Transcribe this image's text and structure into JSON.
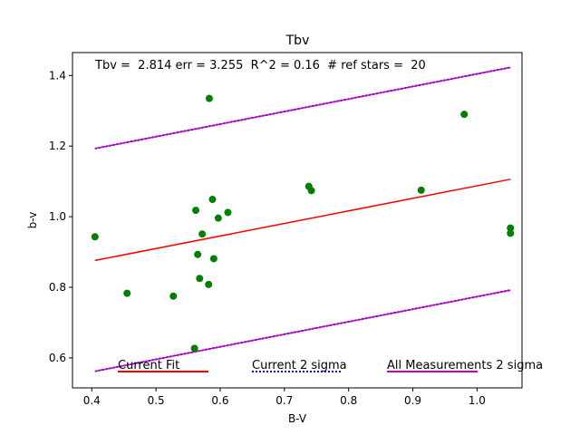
{
  "chart_data": {
    "type": "scatter",
    "title": "Tbv",
    "xlabel": "B-V",
    "ylabel": "b-v",
    "xlim": [
      0.37,
      1.07
    ],
    "ylim": [
      0.515,
      1.465
    ],
    "xticks": [
      0.4,
      0.5,
      0.6,
      0.7,
      0.8,
      0.9,
      1.0
    ],
    "xtick_labels": [
      "0.4",
      "0.5",
      "0.6",
      "0.7",
      "0.8",
      "0.9",
      "1.0"
    ],
    "yticks": [
      0.6,
      0.8,
      1.0,
      1.2,
      1.4
    ],
    "ytick_labels": [
      "0.6",
      "0.8",
      "1.0",
      "1.2",
      "1.4"
    ],
    "grid": false,
    "annotation": "Tbv =  2.814 err = 3.255  R^2 = 0.16  # ref stars =  20",
    "points": {
      "color": "#008000",
      "x": [
        0.405,
        0.455,
        0.527,
        0.56,
        0.562,
        0.565,
        0.568,
        0.572,
        0.582,
        0.583,
        0.588,
        0.59,
        0.597,
        0.612,
        0.738,
        0.742,
        0.913,
        0.98,
        1.052,
        1.052
      ],
      "y": [
        0.943,
        0.783,
        0.775,
        0.627,
        1.018,
        0.893,
        0.825,
        0.951,
        0.808,
        1.335,
        1.049,
        0.881,
        0.996,
        1.012,
        1.086,
        1.074,
        1.075,
        1.29,
        0.953,
        0.968
      ]
    },
    "lines": [
      {
        "name": "Current Fit",
        "color": "#ff0000",
        "style": "solid",
        "x": [
          0.405,
          1.052
        ],
        "y": [
          0.876,
          1.106
        ]
      },
      {
        "name": "Current 2 sigma",
        "color": "#0000ff",
        "style": "dotted",
        "x": [
          0.405,
          1.052
        ],
        "y": [
          1.193,
          1.423
        ]
      },
      {
        "name": "Current 2 sigma",
        "color": "#0000ff",
        "style": "dotted",
        "x": [
          0.405,
          1.052
        ],
        "y": [
          0.562,
          0.792
        ]
      },
      {
        "name": "All Measurements 2 sigma",
        "color": "#bf00bf",
        "style": "solid",
        "x": [
          0.405,
          1.052
        ],
        "y": [
          1.193,
          1.423
        ]
      },
      {
        "name": "All Measurements 2 sigma",
        "color": "#bf00bf",
        "style": "solid",
        "x": [
          0.405,
          1.052
        ],
        "y": [
          0.562,
          0.792
        ]
      }
    ],
    "legend": {
      "placement": "bottom",
      "items": [
        {
          "label": "Current Fit",
          "color": "#ff0000",
          "style": "solid"
        },
        {
          "label": "Current 2 sigma",
          "color": "#0000ff",
          "style": "dotted"
        },
        {
          "label": "All Measurements 2 sigma",
          "color": "#bf00bf",
          "style": "solid"
        }
      ]
    }
  }
}
